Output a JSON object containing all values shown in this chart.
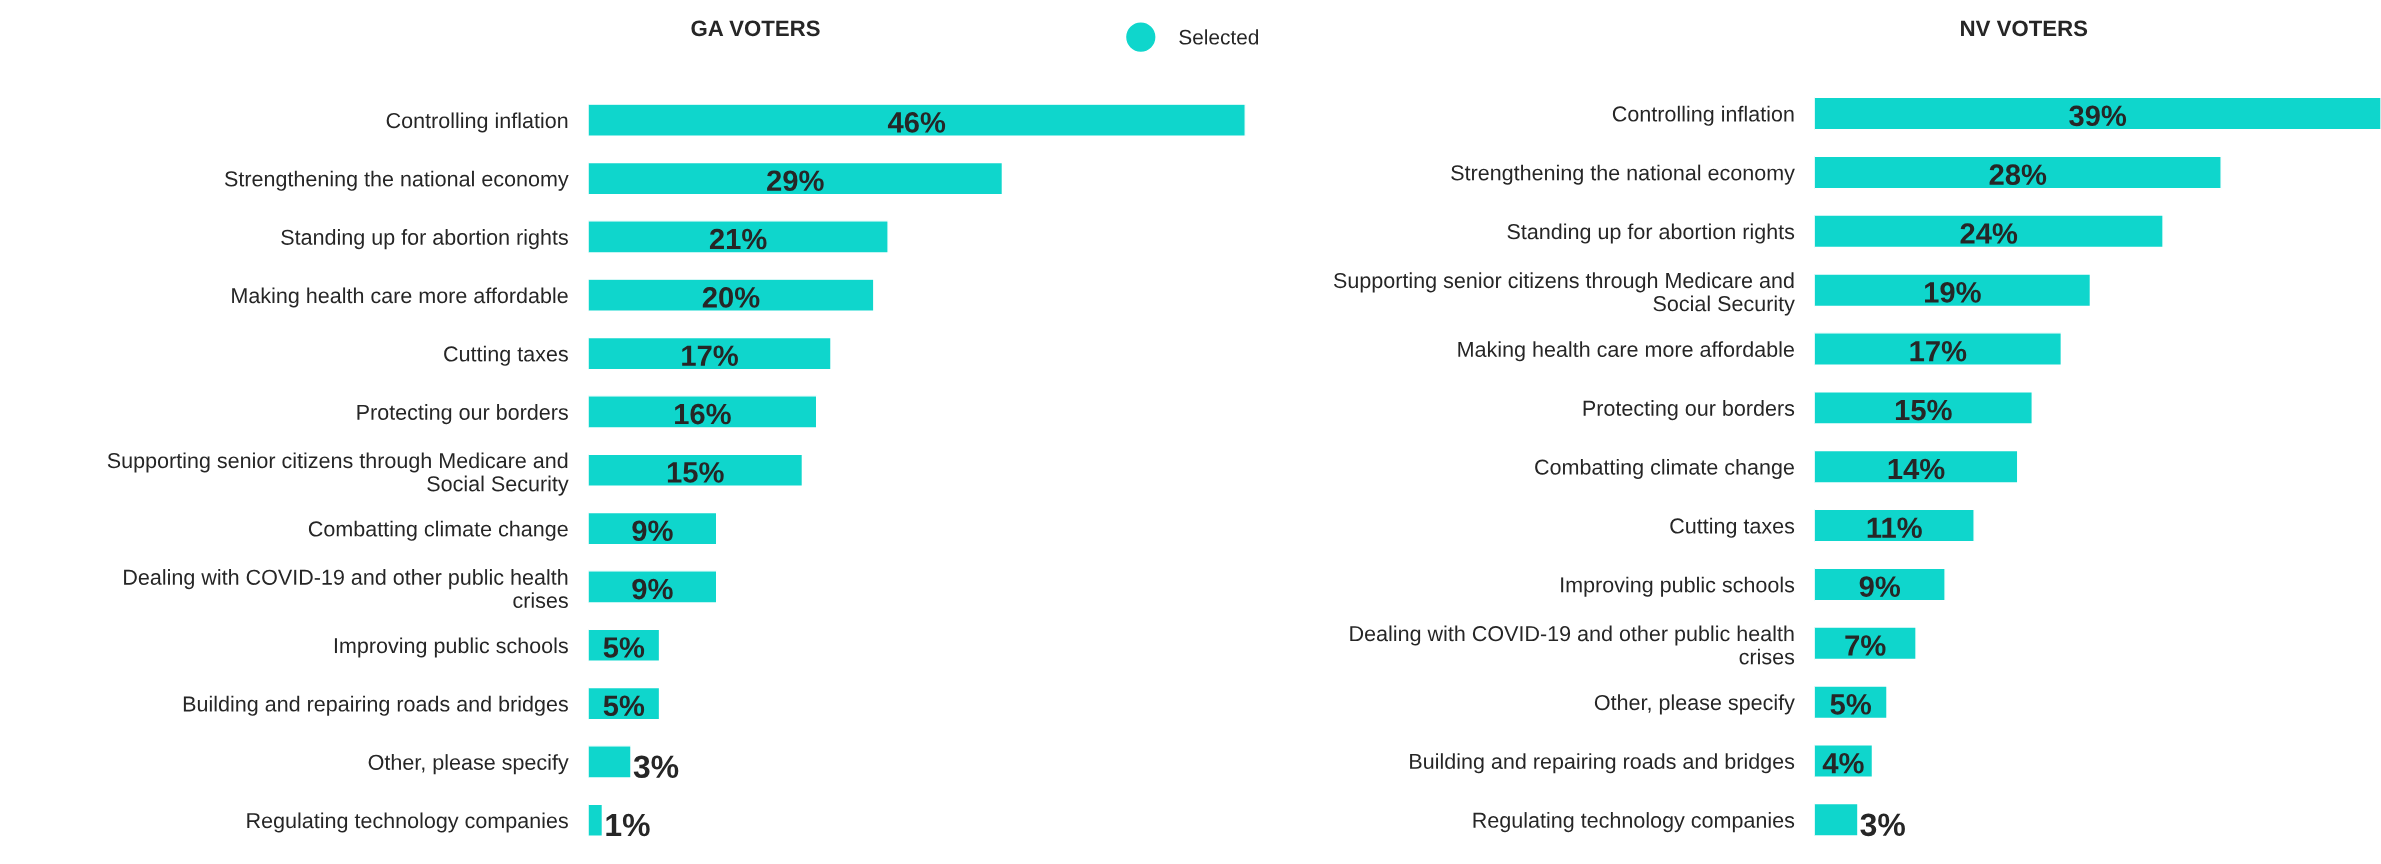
{
  "chart_data": [
    {
      "type": "bar",
      "orientation": "horizontal",
      "title": "GA VOTERS",
      "legend": "top right",
      "grid": false,
      "tick_labels": "y",
      "categories": [
        "Controlling inflation",
        "Strengthening the national economy",
        "Standing up for abortion rights",
        "Making health care more affordable",
        "Cutting taxes",
        "Protecting our borders",
        "Supporting senior citizens through Medicare and\nSocial Security",
        "Combatting climate change",
        "Dealing with COVID-19 and other public health\ncrises",
        "Improving public schools",
        "Building and repairing roads and bridges",
        "Other, please specify",
        "Regulating technology companies"
      ],
      "series": [
        {
          "name": "Selected",
          "color": "#0fd6cc",
          "values": [
            46,
            29,
            21,
            20,
            17,
            16,
            15,
            9,
            9,
            5,
            5,
            3,
            1
          ],
          "value_labels": [
            "46%",
            "29%",
            "21%",
            "20%",
            "17%",
            "16%",
            "15%",
            "9%",
            "9%",
            "5%",
            "5%",
            "3%",
            "1%"
          ]
        }
      ]
    },
    {
      "type": "bar",
      "orientation": "horizontal",
      "title": "NV VOTERS",
      "legend": false,
      "grid": false,
      "tick_labels": "y",
      "categories": [
        "Controlling inflation",
        "Strengthening the national economy",
        "Standing up for abortion rights",
        "Supporting senior citizens through Medicare and\nSocial Security",
        "Making health care more affordable",
        "Protecting our borders",
        "Combatting climate change",
        "Cutting taxes",
        "Improving public schools",
        "Dealing with COVID-19 and other public health\ncrises",
        "Other, please specify",
        "Building and repairing roads and bridges",
        "Regulating technology companies"
      ],
      "series": [
        {
          "color": "#0fd6cc",
          "values": [
            39,
            28,
            24,
            19,
            17,
            15,
            14,
            11,
            9,
            7,
            5,
            4,
            3
          ],
          "value_labels": [
            "39%",
            "28%",
            "24%",
            "19%",
            "17%",
            "15%",
            "14%",
            "11%",
            "9%",
            "7%",
            "5%",
            "4%",
            "3%"
          ]
        }
      ]
    }
  ]
}
